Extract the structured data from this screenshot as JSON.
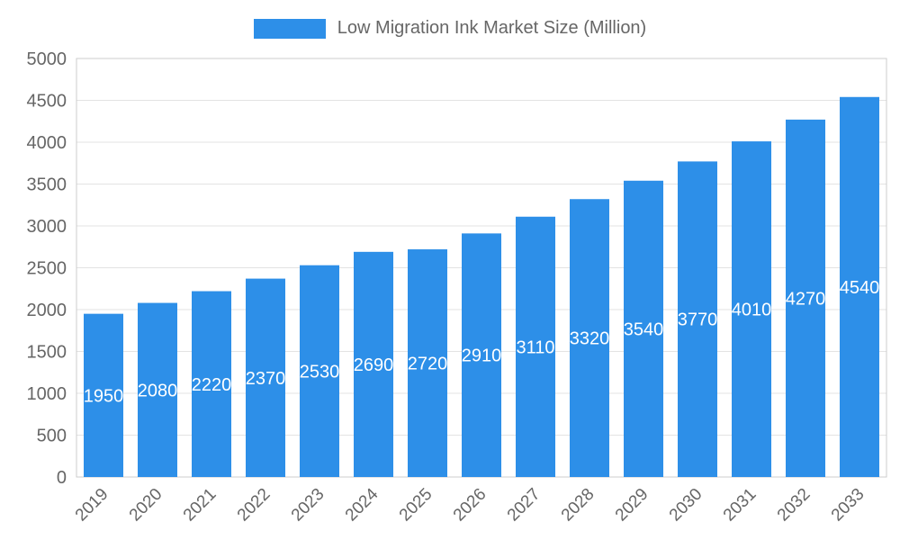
{
  "chart_data": {
    "type": "bar",
    "title": "Low Migration Ink Market Size (Million)",
    "categories": [
      "2019",
      "2020",
      "2021",
      "2022",
      "2023",
      "2024",
      "2025",
      "2026",
      "2027",
      "2028",
      "2029",
      "2030",
      "2031",
      "2032",
      "2033"
    ],
    "values": [
      1950,
      2080,
      2220,
      2370,
      2530,
      2690,
      2720,
      2910,
      3110,
      3320,
      3540,
      3770,
      4010,
      4270,
      4540
    ],
    "xlabel": "",
    "ylabel": "",
    "ylim": [
      0,
      5000
    ],
    "ytick_step": 500,
    "grid": true,
    "legend_position": "top",
    "colors": {
      "bar": "#2D8FE8",
      "value_label": "#FFFFFF",
      "axis_label": "#666666",
      "gridline": "#E3E3E3",
      "plot_border": "#CCCCCC"
    }
  }
}
